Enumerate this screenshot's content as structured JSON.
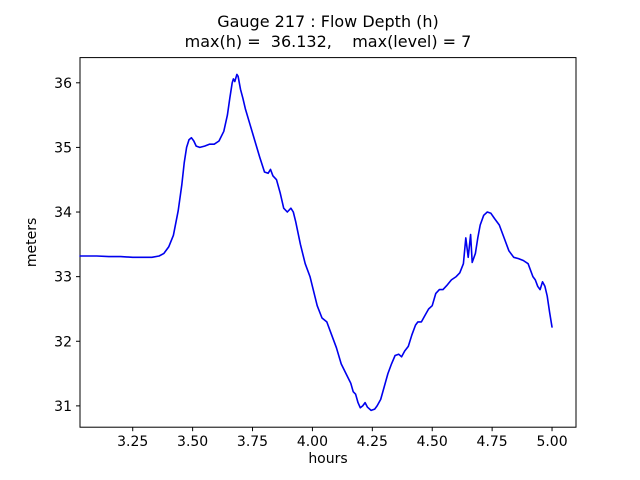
{
  "chart_data": {
    "type": "line",
    "title": "Gauge 217 : Flow Depth (h)",
    "subtitle": "max(h) =  36.132,    max(level) = 7",
    "xlabel": "hours",
    "ylabel": "meters",
    "xlim": [
      3.03,
      5.1
    ],
    "ylim": [
      30.67,
      36.39
    ],
    "grid": false,
    "legend": "none",
    "line_color": "#0000ee",
    "line_width": 1.6,
    "max_h": 36.132,
    "max_level": 7,
    "xticks": [
      {
        "value": 3.25,
        "label": "3.25"
      },
      {
        "value": 3.5,
        "label": "3.50"
      },
      {
        "value": 3.75,
        "label": "3.75"
      },
      {
        "value": 4.0,
        "label": "4.00"
      },
      {
        "value": 4.25,
        "label": "4.25"
      },
      {
        "value": 4.5,
        "label": "4.50"
      },
      {
        "value": 4.75,
        "label": "4.75"
      },
      {
        "value": 5.0,
        "label": "5.00"
      }
    ],
    "yticks": [
      {
        "value": 31,
        "label": "31"
      },
      {
        "value": 32,
        "label": "32"
      },
      {
        "value": 33,
        "label": "33"
      },
      {
        "value": 34,
        "label": "34"
      },
      {
        "value": 35,
        "label": "35"
      },
      {
        "value": 36,
        "label": "36"
      }
    ],
    "points": [
      [
        3.03,
        33.32
      ],
      [
        3.1,
        33.32
      ],
      [
        3.15,
        33.31
      ],
      [
        3.2,
        33.31
      ],
      [
        3.25,
        33.3
      ],
      [
        3.3,
        33.3
      ],
      [
        3.33,
        33.3
      ],
      [
        3.36,
        33.32
      ],
      [
        3.38,
        33.36
      ],
      [
        3.4,
        33.46
      ],
      [
        3.42,
        33.64
      ],
      [
        3.44,
        34.02
      ],
      [
        3.455,
        34.42
      ],
      [
        3.465,
        34.76
      ],
      [
        3.475,
        35.0
      ],
      [
        3.485,
        35.12
      ],
      [
        3.495,
        35.15
      ],
      [
        3.505,
        35.1
      ],
      [
        3.515,
        35.02
      ],
      [
        3.53,
        35.0
      ],
      [
        3.55,
        35.02
      ],
      [
        3.57,
        35.05
      ],
      [
        3.59,
        35.05
      ],
      [
        3.61,
        35.1
      ],
      [
        3.63,
        35.25
      ],
      [
        3.645,
        35.5
      ],
      [
        3.655,
        35.76
      ],
      [
        3.665,
        36.0
      ],
      [
        3.67,
        36.06
      ],
      [
        3.676,
        36.02
      ],
      [
        3.685,
        36.13
      ],
      [
        3.69,
        36.1
      ],
      [
        3.7,
        35.9
      ],
      [
        3.71,
        35.76
      ],
      [
        3.72,
        35.6
      ],
      [
        3.74,
        35.35
      ],
      [
        3.76,
        35.1
      ],
      [
        3.78,
        34.85
      ],
      [
        3.8,
        34.62
      ],
      [
        3.815,
        34.6
      ],
      [
        3.825,
        34.66
      ],
      [
        3.835,
        34.56
      ],
      [
        3.85,
        34.5
      ],
      [
        3.865,
        34.3
      ],
      [
        3.88,
        34.06
      ],
      [
        3.895,
        34.0
      ],
      [
        3.91,
        34.06
      ],
      [
        3.92,
        34.0
      ],
      [
        3.93,
        33.85
      ],
      [
        3.95,
        33.5
      ],
      [
        3.97,
        33.2
      ],
      [
        3.99,
        33.0
      ],
      [
        4.0,
        32.85
      ],
      [
        4.02,
        32.55
      ],
      [
        4.04,
        32.36
      ],
      [
        4.06,
        32.3
      ],
      [
        4.08,
        32.1
      ],
      [
        4.1,
        31.9
      ],
      [
        4.12,
        31.65
      ],
      [
        4.14,
        31.5
      ],
      [
        4.16,
        31.35
      ],
      [
        4.17,
        31.22
      ],
      [
        4.18,
        31.18
      ],
      [
        4.19,
        31.05
      ],
      [
        4.2,
        30.97
      ],
      [
        4.21,
        31.0
      ],
      [
        4.22,
        31.05
      ],
      [
        4.23,
        30.98
      ],
      [
        4.245,
        30.93
      ],
      [
        4.26,
        30.95
      ],
      [
        4.27,
        31.0
      ],
      [
        4.285,
        31.1
      ],
      [
        4.3,
        31.3
      ],
      [
        4.315,
        31.5
      ],
      [
        4.33,
        31.65
      ],
      [
        4.345,
        31.78
      ],
      [
        4.36,
        31.8
      ],
      [
        4.372,
        31.76
      ],
      [
        4.385,
        31.85
      ],
      [
        4.4,
        31.92
      ],
      [
        4.415,
        32.1
      ],
      [
        4.43,
        32.25
      ],
      [
        4.44,
        32.3
      ],
      [
        4.455,
        32.3
      ],
      [
        4.47,
        32.4
      ],
      [
        4.485,
        32.5
      ],
      [
        4.5,
        32.55
      ],
      [
        4.515,
        32.74
      ],
      [
        4.53,
        32.8
      ],
      [
        4.545,
        32.8
      ],
      [
        4.56,
        32.86
      ],
      [
        4.58,
        32.95
      ],
      [
        4.6,
        33.0
      ],
      [
        4.615,
        33.06
      ],
      [
        4.63,
        33.2
      ],
      [
        4.64,
        33.6
      ],
      [
        4.65,
        33.3
      ],
      [
        4.66,
        33.65
      ],
      [
        4.667,
        33.22
      ],
      [
        4.68,
        33.36
      ],
      [
        4.69,
        33.6
      ],
      [
        4.7,
        33.8
      ],
      [
        4.715,
        33.95
      ],
      [
        4.73,
        34.0
      ],
      [
        4.745,
        33.98
      ],
      [
        4.76,
        33.9
      ],
      [
        4.78,
        33.8
      ],
      [
        4.8,
        33.6
      ],
      [
        4.82,
        33.4
      ],
      [
        4.84,
        33.3
      ],
      [
        4.86,
        33.28
      ],
      [
        4.88,
        33.25
      ],
      [
        4.9,
        33.2
      ],
      [
        4.92,
        33.0
      ],
      [
        4.93,
        32.95
      ],
      [
        4.94,
        32.85
      ],
      [
        4.95,
        32.8
      ],
      [
        4.96,
        32.92
      ],
      [
        4.97,
        32.85
      ],
      [
        4.98,
        32.7
      ],
      [
        4.99,
        32.45
      ],
      [
        5.0,
        32.22
      ]
    ]
  }
}
